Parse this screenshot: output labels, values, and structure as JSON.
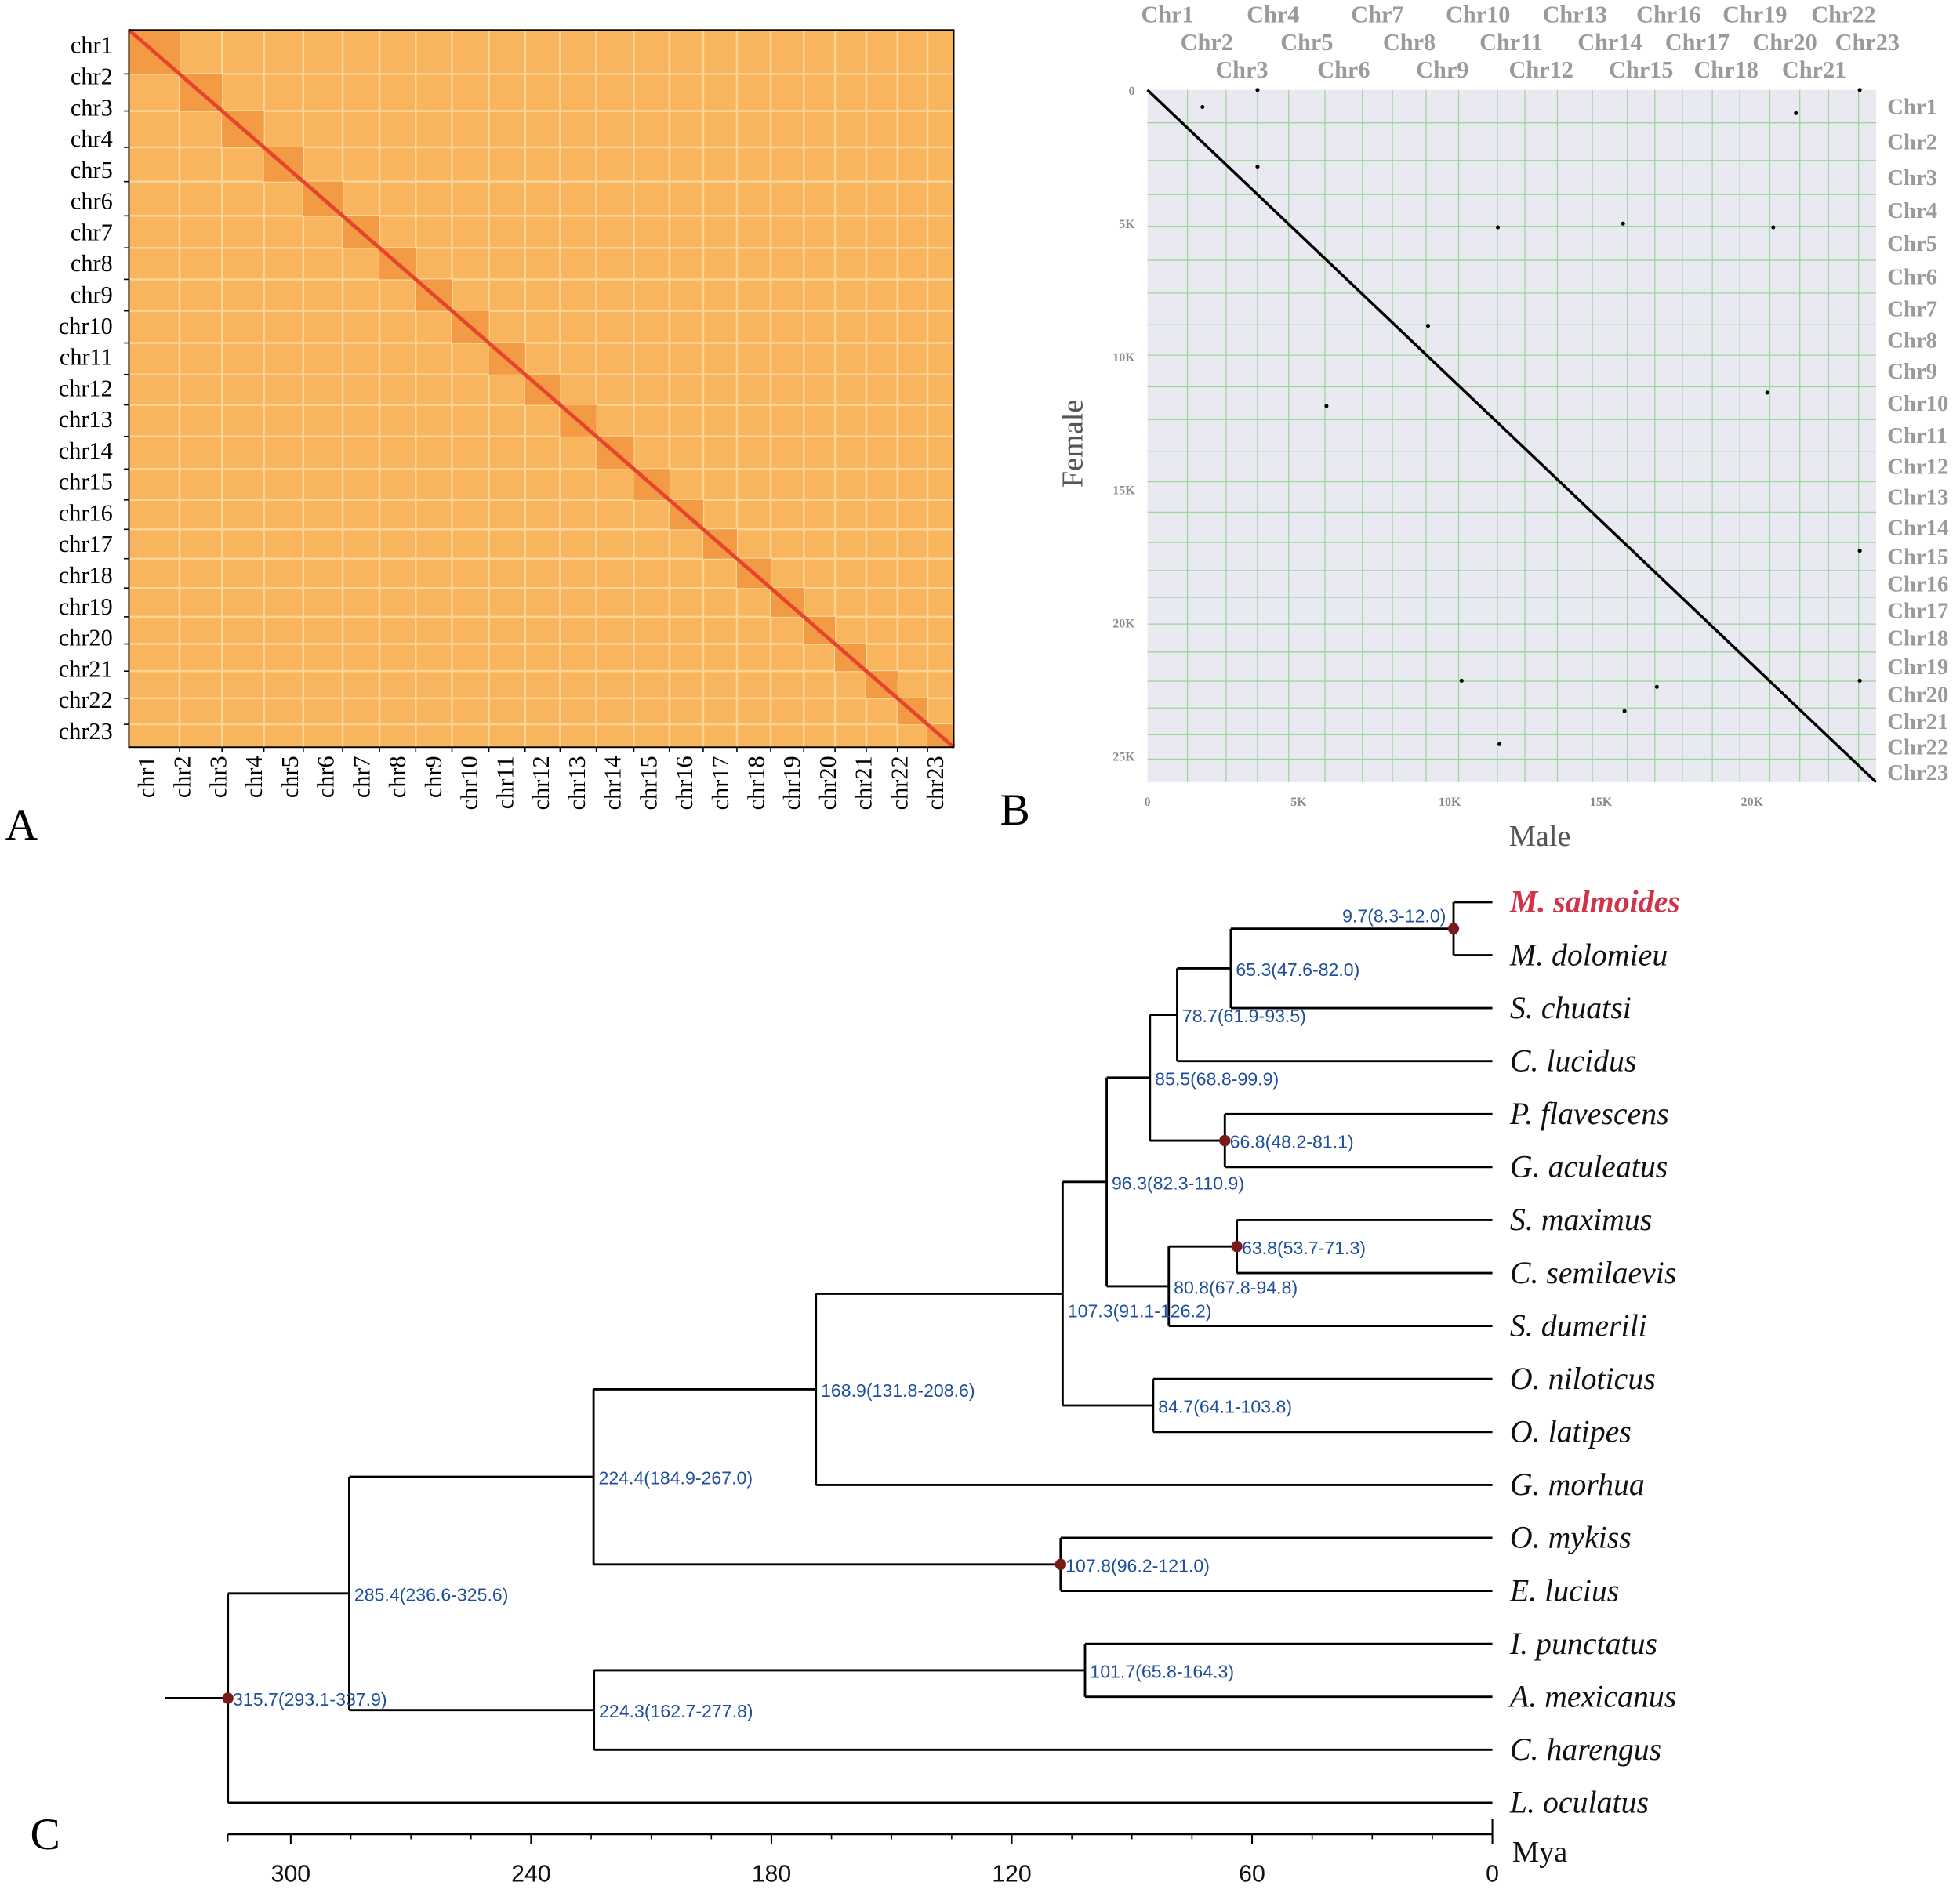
{
  "panels": {
    "a": "A",
    "b": "B",
    "c": "C"
  },
  "colors": {
    "heat_bg": "#f8b55e",
    "heat_block": "#f39a45",
    "heat_diag": "#e5452c",
    "dot_bg": "#e9e9f1",
    "grid": "#9fd39f",
    "node_label": "#1f4e9c",
    "node_marker": "#7a1a1a",
    "highlight": "#d0344a"
  },
  "chart_data": [
    {
      "type": "heatmap",
      "panel": "A",
      "row_labels": [
        "chr1",
        "chr2",
        "chr3",
        "chr4",
        "chr5",
        "chr6",
        "chr7",
        "chr8",
        "chr9",
        "chr10",
        "chr11",
        "chr12",
        "chr13",
        "chr14",
        "chr15",
        "chr16",
        "chr17",
        "chr18",
        "chr19",
        "chr20",
        "chr21",
        "chr22",
        "chr23"
      ],
      "col_labels": [
        "chr1",
        "chr2",
        "chr3",
        "chr4",
        "chr5",
        "chr6",
        "chr7",
        "chr8",
        "chr9",
        "chr10",
        "chr11",
        "chr12",
        "chr13",
        "chr14",
        "chr15",
        "chr16",
        "chr17",
        "chr18",
        "chr19",
        "chr20",
        "chr21",
        "chr22",
        "chr23"
      ]
    },
    {
      "type": "scatter",
      "panel": "B",
      "xlabel": "Male",
      "ylabel": "Female",
      "x_ticks": [
        {
          "label": "0",
          "value": 0
        },
        {
          "label": "5K",
          "value": 5
        },
        {
          "label": "10K",
          "value": 10
        },
        {
          "label": "15K",
          "value": 15
        },
        {
          "label": "20K",
          "value": 20
        }
      ],
      "y_ticks": [
        {
          "label": "0",
          "value": 0
        },
        {
          "label": "5K",
          "value": 5
        },
        {
          "label": "10K",
          "value": 10
        },
        {
          "label": "15K",
          "value": 15
        },
        {
          "label": "20K",
          "value": 20
        },
        {
          "label": "25K",
          "value": 25
        }
      ],
      "xlim": [
        0,
        24.1
      ],
      "ylim": [
        0,
        26.0
      ],
      "units": "thousands",
      "x_categories": [
        "Chr1",
        "Chr2",
        "Chr3",
        "Chr4",
        "Chr5",
        "Chr6",
        "Chr7",
        "Chr8",
        "Chr9",
        "Chr10",
        "Chr11",
        "Chr12",
        "Chr13",
        "Chr14",
        "Chr15",
        "Chr16",
        "Chr17",
        "Chr18",
        "Chr19",
        "Chr20",
        "Chr21",
        "Chr22",
        "Chr23"
      ],
      "y_categories": [
        "Chr1",
        "Chr2",
        "Chr3",
        "Chr4",
        "Chr5",
        "Chr6",
        "Chr7",
        "Chr8",
        "Chr9",
        "Chr10",
        "Chr11",
        "Chr12",
        "Chr13",
        "Chr14",
        "Chr15",
        "Chr16",
        "Chr17",
        "Chr18",
        "Chr19",
        "Chr20",
        "Chr21",
        "Chr22",
        "Chr23"
      ],
      "diagonal": [
        [
          0,
          0
        ],
        [
          24.1,
          26.0
        ]
      ],
      "off_diagonal_points": [
        [
          1.82,
          0.64
        ],
        [
          3.64,
          0
        ],
        [
          3.64,
          2.88
        ],
        [
          11.59,
          5.16
        ],
        [
          15.73,
          5.02
        ],
        [
          20.7,
          5.16
        ],
        [
          21.45,
          0.87
        ],
        [
          23.56,
          0
        ],
        [
          9.28,
          8.86
        ],
        [
          5.92,
          11.87
        ],
        [
          20.5,
          11.37
        ],
        [
          23.56,
          17.31
        ],
        [
          10.39,
          22.19
        ],
        [
          16.85,
          22.42
        ],
        [
          15.78,
          23.33
        ],
        [
          11.64,
          24.57
        ],
        [
          23.56,
          22.19
        ]
      ]
    },
    {
      "type": "tree",
      "panel": "C",
      "axis_label": "Mya",
      "ticks": [
        300,
        240,
        180,
        120,
        60,
        0
      ],
      "root_age": 315.7,
      "tree": {
        "age": 315.7,
        "label": "315.7(293.1-337.9)",
        "marked": true,
        "children": [
          {
            "age": 285.4,
            "label": "285.4(236.6-325.6)",
            "children": [
              {
                "age": 224.4,
                "label": "224.4(184.9-267.0)",
                "children": [
                  {
                    "age": 168.9,
                    "label": "168.9(131.8-208.6)",
                    "children": [
                      {
                        "age": 107.3,
                        "label": "107.3(91.1-126.2)",
                        "children": [
                          {
                            "age": 96.3,
                            "label": "96.3(82.3-110.9)",
                            "children": [
                              {
                                "age": 85.5,
                                "label": "85.5(68.8-99.9)",
                                "children": [
                                  {
                                    "age": 78.7,
                                    "label": "78.7(61.9-93.5)",
                                    "children": [
                                      {
                                        "age": 65.3,
                                        "label": "65.3(47.6-82.0)",
                                        "children": [
                                          {
                                            "age": 9.7,
                                            "label": "9.7(8.3-12.0)",
                                            "marked": true,
                                            "children": [
                                              {
                                                "name": "M. salmoides",
                                                "highlight": true
                                              },
                                              {
                                                "name": "M. dolomieu"
                                              }
                                            ]
                                          },
                                          {
                                            "name": "S. chuatsi"
                                          }
                                        ]
                                      },
                                      {
                                        "name": "C. lucidus"
                                      }
                                    ]
                                  },
                                  {
                                    "age": 66.8,
                                    "label": "66.8(48.2-81.1)",
                                    "marked": true,
                                    "children": [
                                      {
                                        "name": "P. flavescens"
                                      },
                                      {
                                        "name": "G. aculeatus"
                                      }
                                    ]
                                  }
                                ]
                              },
                              {
                                "age": 80.8,
                                "label": "80.8(67.8-94.8)",
                                "children": [
                                  {
                                    "age": 63.8,
                                    "label": "63.8(53.7-71.3)",
                                    "marked": true,
                                    "children": [
                                      {
                                        "name": "S. maximus"
                                      },
                                      {
                                        "name": "C. semilaevis"
                                      }
                                    ]
                                  },
                                  {
                                    "name": "S. dumerili"
                                  }
                                ]
                              }
                            ]
                          },
                          {
                            "age": 84.7,
                            "label": "84.7(64.1-103.8)",
                            "children": [
                              {
                                "name": "O. niloticus"
                              },
                              {
                                "name": "O. latipes"
                              }
                            ]
                          }
                        ]
                      },
                      {
                        "name": "G. morhua"
                      }
                    ]
                  },
                  {
                    "age": 107.8,
                    "label": "107.8(96.2-121.0)",
                    "marked": true,
                    "children": [
                      {
                        "name": "O. mykiss"
                      },
                      {
                        "name": "E. lucius"
                      }
                    ]
                  }
                ]
              },
              {
                "age": 224.3,
                "label": "224.3(162.7-277.8)",
                "children": [
                  {
                    "age": 101.7,
                    "label": "101.7(65.8-164.3)",
                    "children": [
                      {
                        "name": "I. punctatus"
                      },
                      {
                        "name": "A. mexicanus"
                      }
                    ]
                  },
                  {
                    "name": "C. harengus"
                  }
                ]
              }
            ]
          },
          {
            "name": "L. oculatus"
          }
        ]
      }
    }
  ]
}
